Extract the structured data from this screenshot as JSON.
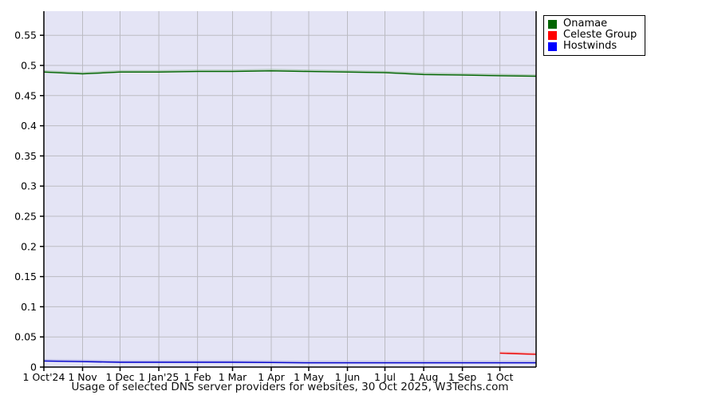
{
  "chart_data": {
    "type": "line",
    "title": "Usage of selected DNS server providers for websites, 30 Oct 2025, W3Techs.com",
    "xlabel": "",
    "ylabel": "",
    "ylim": [
      0,
      0.59
    ],
    "y_ticks": [
      0,
      0.05,
      0.1,
      0.15,
      0.2,
      0.25,
      0.3,
      0.35,
      0.4,
      0.45,
      0.5,
      0.55
    ],
    "y_tick_labels": [
      "0",
      "0.05",
      "0.1",
      "0.15",
      "0.2",
      "0.25",
      "0.3",
      "0.35",
      "0.4",
      "0.45",
      "0.5",
      "0.55"
    ],
    "x_tick_labels": [
      "1 Oct'24",
      "1 Nov",
      "1 Dec",
      "1 Jan'25",
      "1 Feb",
      "1 Mar",
      "1 Apr",
      "1 May",
      "1 Jun",
      "1 Jul",
      "1 Aug",
      "1 Sep",
      "1 Oct"
    ],
    "x_tick_days": [
      0,
      31,
      61,
      92,
      123,
      151,
      182,
      212,
      243,
      273,
      304,
      335,
      365
    ],
    "x_total_days": 394,
    "grid": true,
    "legend_position": "top-right",
    "colors": {
      "plot_background": "#e4e4f5",
      "gridline": "#bbbbc2",
      "axis": "#000000",
      "text": "#000000"
    },
    "series": [
      {
        "name": "Onamae",
        "color": "#006400",
        "legend_color": "#006400",
        "halo": "#86b286",
        "x_days": [
          0,
          31,
          61,
          92,
          123,
          151,
          182,
          212,
          243,
          273,
          304,
          335,
          365,
          394
        ],
        "values": [
          0.489,
          0.486,
          0.489,
          0.489,
          0.49,
          0.49,
          0.491,
          0.49,
          0.489,
          0.488,
          0.485,
          0.484,
          0.483,
          0.482
        ]
      },
      {
        "name": "Celeste Group",
        "color": "#ee0000",
        "legend_color": "#ff0000",
        "halo": "#f2a0a0",
        "x_days": [
          365,
          394
        ],
        "values": [
          0.023,
          0.021
        ]
      },
      {
        "name": "Hostwinds",
        "color": "#0000cc",
        "legend_color": "#0000ff",
        "halo": "#9a9ae0",
        "x_days": [
          0,
          31,
          61,
          92,
          123,
          151,
          182,
          212,
          243,
          273,
          304,
          335,
          365,
          394
        ],
        "values": [
          0.01,
          0.009,
          0.008,
          0.008,
          0.008,
          0.008,
          0.0075,
          0.007,
          0.007,
          0.007,
          0.007,
          0.007,
          0.007,
          0.007
        ]
      }
    ]
  }
}
